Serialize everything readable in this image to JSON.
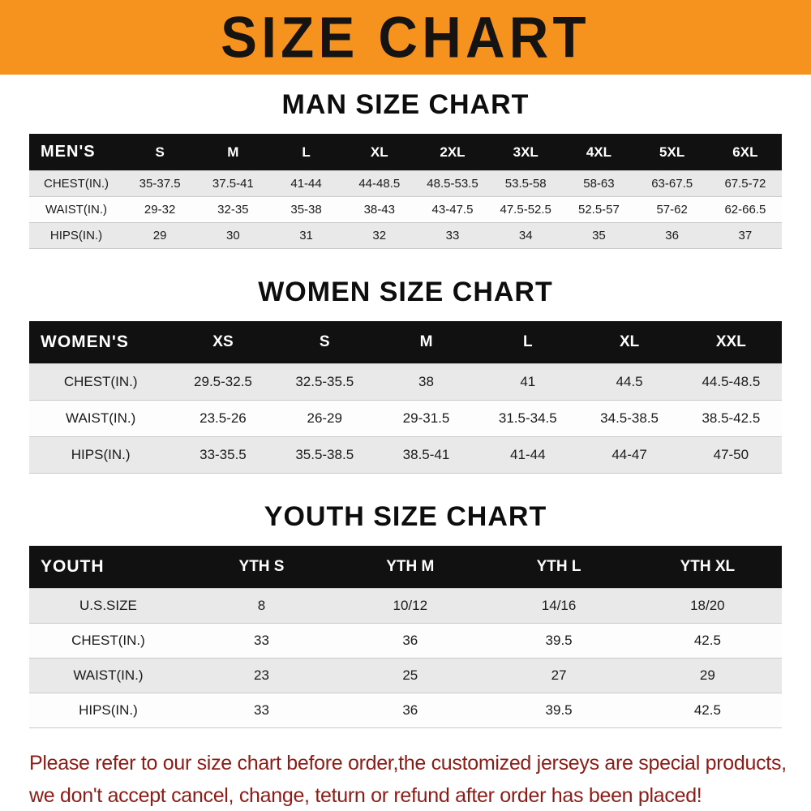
{
  "banner": {
    "title": "SIZE CHART",
    "bg_color": "#F6921E"
  },
  "chart_data": [
    {
      "type": "table",
      "title": "MAN SIZE CHART",
      "corner_label": "MEN'S",
      "columns": [
        "S",
        "M",
        "L",
        "XL",
        "2XL",
        "3XL",
        "4XL",
        "5XL",
        "6XL"
      ],
      "rows": [
        {
          "label": "CHEST(IN.)",
          "values": [
            "35-37.5",
            "37.5-41",
            "41-44",
            "44-48.5",
            "48.5-53.5",
            "53.5-58",
            "58-63",
            "63-67.5",
            "67.5-72"
          ]
        },
        {
          "label": "WAIST(IN.)",
          "values": [
            "29-32",
            "32-35",
            "35-38",
            "38-43",
            "43-47.5",
            "47.5-52.5",
            "52.5-57",
            "57-62",
            "62-66.5"
          ]
        },
        {
          "label": "HIPS(IN.)",
          "values": [
            "29",
            "30",
            "31",
            "32",
            "33",
            "34",
            "35",
            "36",
            "37"
          ]
        }
      ]
    },
    {
      "type": "table",
      "title": "WOMEN SIZE CHART",
      "corner_label": "WOMEN'S",
      "columns": [
        "XS",
        "S",
        "M",
        "L",
        "XL",
        "XXL"
      ],
      "rows": [
        {
          "label": "CHEST(IN.)",
          "values": [
            "29.5-32.5",
            "32.5-35.5",
            "38",
            "41",
            "44.5",
            "44.5-48.5"
          ]
        },
        {
          "label": "WAIST(IN.)",
          "values": [
            "23.5-26",
            "26-29",
            "29-31.5",
            "31.5-34.5",
            "34.5-38.5",
            "38.5-42.5"
          ]
        },
        {
          "label": "HIPS(IN.)",
          "values": [
            "33-35.5",
            "35.5-38.5",
            "38.5-41",
            "41-44",
            "44-47",
            "47-50"
          ]
        }
      ]
    },
    {
      "type": "table",
      "title": "YOUTH SIZE CHART",
      "corner_label": "YOUTH",
      "columns": [
        "YTH S",
        "YTH M",
        "YTH L",
        "YTH XL"
      ],
      "rows": [
        {
          "label": "U.S.SIZE",
          "values": [
            "8",
            "10/12",
            "14/16",
            "18/20"
          ]
        },
        {
          "label": "CHEST(IN.)",
          "values": [
            "33",
            "36",
            "39.5",
            "42.5"
          ]
        },
        {
          "label": "WAIST(IN.)",
          "values": [
            "23",
            "25",
            "27",
            "29"
          ]
        },
        {
          "label": "HIPS(IN.)",
          "values": [
            "33",
            "36",
            "39.5",
            "42.5"
          ]
        }
      ]
    }
  ],
  "notice": {
    "line1": "Please refer to our size chart before order,the customized jerseys are special products,",
    "line2": "we don't accept cancel, change, teturn or refund after order has been placed!",
    "text_color": "#8E1B15"
  }
}
